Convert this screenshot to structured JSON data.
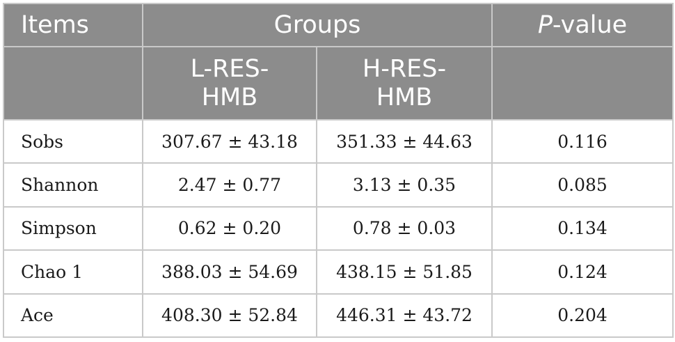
{
  "table": {
    "header": {
      "items": "Items",
      "groups": "Groups",
      "pvalue_italic": "P",
      "pvalue_rest": "-value",
      "group_l_line1": "L-RES-",
      "group_l_line2": "HMB",
      "group_h_line1": "H-RES-",
      "group_h_line2": "HMB"
    },
    "rows": [
      {
        "item": "Sobs",
        "l": "307.67 ± 43.18",
        "h": "351.33 ± 44.63",
        "p": "0.116"
      },
      {
        "item": "Shannon",
        "l": "2.47 ± 0.77",
        "h": "3.13 ± 0.35",
        "p": "0.085"
      },
      {
        "item": "Simpson",
        "l": "0.62 ± 0.20",
        "h": "0.78 ± 0.03",
        "p": "0.134"
      },
      {
        "item": "Chao 1",
        "l": "388.03 ± 54.69",
        "h": "438.15 ± 51.85",
        "p": "0.124"
      },
      {
        "item": "Ace",
        "l": "408.30 ± 52.84",
        "h": "446.31 ± 43.72",
        "p": "0.204"
      }
    ]
  },
  "colors": {
    "header_bg": "#8c8c8c",
    "header_text": "#ffffff",
    "border": "#c9c9c9",
    "body_text": "#1a1a1a"
  }
}
